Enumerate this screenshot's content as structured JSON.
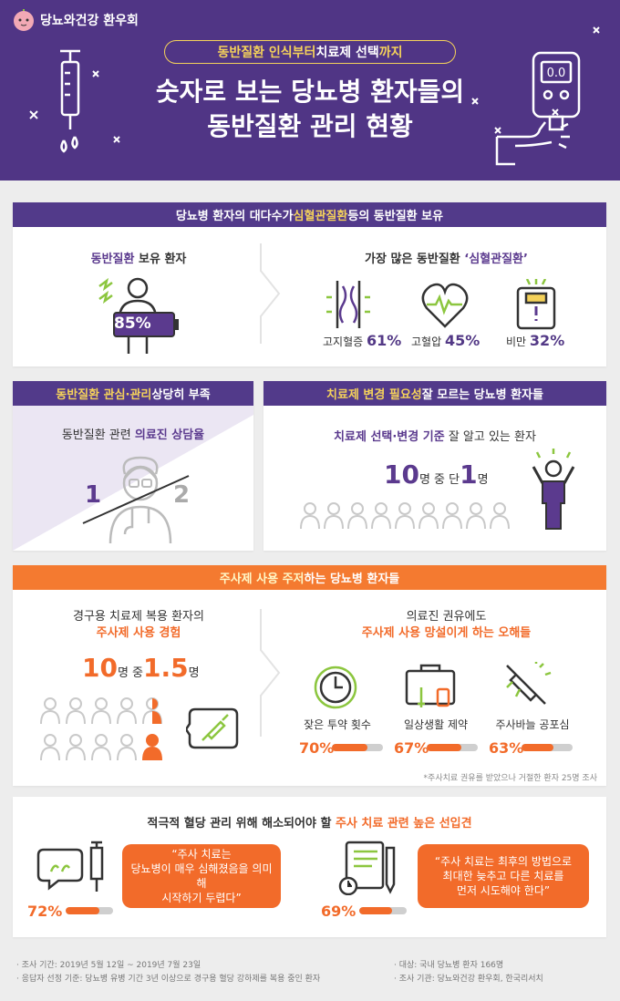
{
  "brand": {
    "name": "당뇨와건강 환우회"
  },
  "header": {
    "sub_a": "동반질환 인식부터 ",
    "sub_b": "치료제 선택",
    "sub_c": "까지",
    "title_line1": "숫자로 보는 당뇨병 환자들의",
    "title_line2": "동반질환 관리 현황",
    "meter_display": "0.0"
  },
  "s1": {
    "band_a": "당뇨병 환자의 대다수가 ",
    "band_b": "심혈관질환",
    "band_c": " 등의 동반질환 보유",
    "left_title_a": "동반질환",
    "left_title_b": " 보유 환자",
    "left_value": "85%",
    "right_title_a": "가장 많은 동반질환 ",
    "right_title_b": "‘심혈관질환’",
    "items": [
      {
        "label": "고지혈증",
        "value": "61%"
      },
      {
        "label": "고혈압",
        "value": "45%"
      },
      {
        "label": "비만",
        "value": "32%"
      }
    ]
  },
  "s2": {
    "band_left_a": "동반질환 관심·관리",
    "band_left_b": " 상당히 부족",
    "left_title_a": "동반질환 관련 ",
    "left_title_b": "의료진 상담율",
    "ratio_a": "1",
    "ratio_b": "2",
    "band_right_a": "치료제 변경 필요성",
    "band_right_b": " 잘 모르는 당뇨병 환자들",
    "right_title_a": "치료제 선택·변경 기준",
    "right_title_b": " 잘 알고 있는 환자",
    "stat_num1": "10",
    "stat_mid": "명 중 단 ",
    "stat_num2": "1",
    "stat_end": "명"
  },
  "s3": {
    "band_a": "주사제 사용 주저",
    "band_b": "하는 당뇨병 환자들",
    "left_line1": "경구용 치료제 복용 환자의",
    "left_line2": "주사제 사용 경험",
    "stat_num1": "10",
    "stat_mid": "명 중 ",
    "stat_num2": "1.5",
    "stat_end": "명",
    "right_line1": "의료진 권유에도",
    "right_line2": "주사제 사용 망설이게 하는 오해들",
    "items": [
      {
        "label": "잦은 투약 횟수",
        "value": "70%",
        "fill": 0.7
      },
      {
        "label": "일상생활 제약",
        "value": "67%",
        "fill": 0.67
      },
      {
        "label": "주사바늘 공포심",
        "value": "63%",
        "fill": 0.63
      }
    ],
    "footnote": "*주사치료 권유를 받았으나 거절한 환자 25명 조사"
  },
  "s4": {
    "title_a": "적극적 혈당 관리 위해 해소되어야 할 ",
    "title_b": "주사 치료 관련 높은 선입견",
    "q1": {
      "value": "72%",
      "fill": 0.72,
      "line1": "“주사 치료는",
      "line2": "당뇨병이 매우 심해졌음을 의미해",
      "line3": "시작하기 두렵다”"
    },
    "q2": {
      "value": "69%",
      "fill": 0.69,
      "line1": "“주사 치료는 최후의 방법으로",
      "line2": "최대한 늦추고 다른 치료를",
      "line3": "먼저 시도해야 한다”"
    }
  },
  "footer": {
    "l1": "· 조사 기간: 2019년 5월 12일 ~ 2019년 7월 23일",
    "l2": "· 응답자 선정 기준: 당뇨병 유병 기간 3년 이상으로 경구용 혈당 강하제를 복용 중인 환자",
    "r1": "· 대상: 국내 당뇨병 환자 166명",
    "r2": "· 조사 기관: 당뇨와건강 환우회, 한국리서치"
  },
  "colors": {
    "purple": "#503585",
    "orange": "#f26b2a",
    "yellow": "#f5d25a",
    "green": "#8cc63f"
  }
}
